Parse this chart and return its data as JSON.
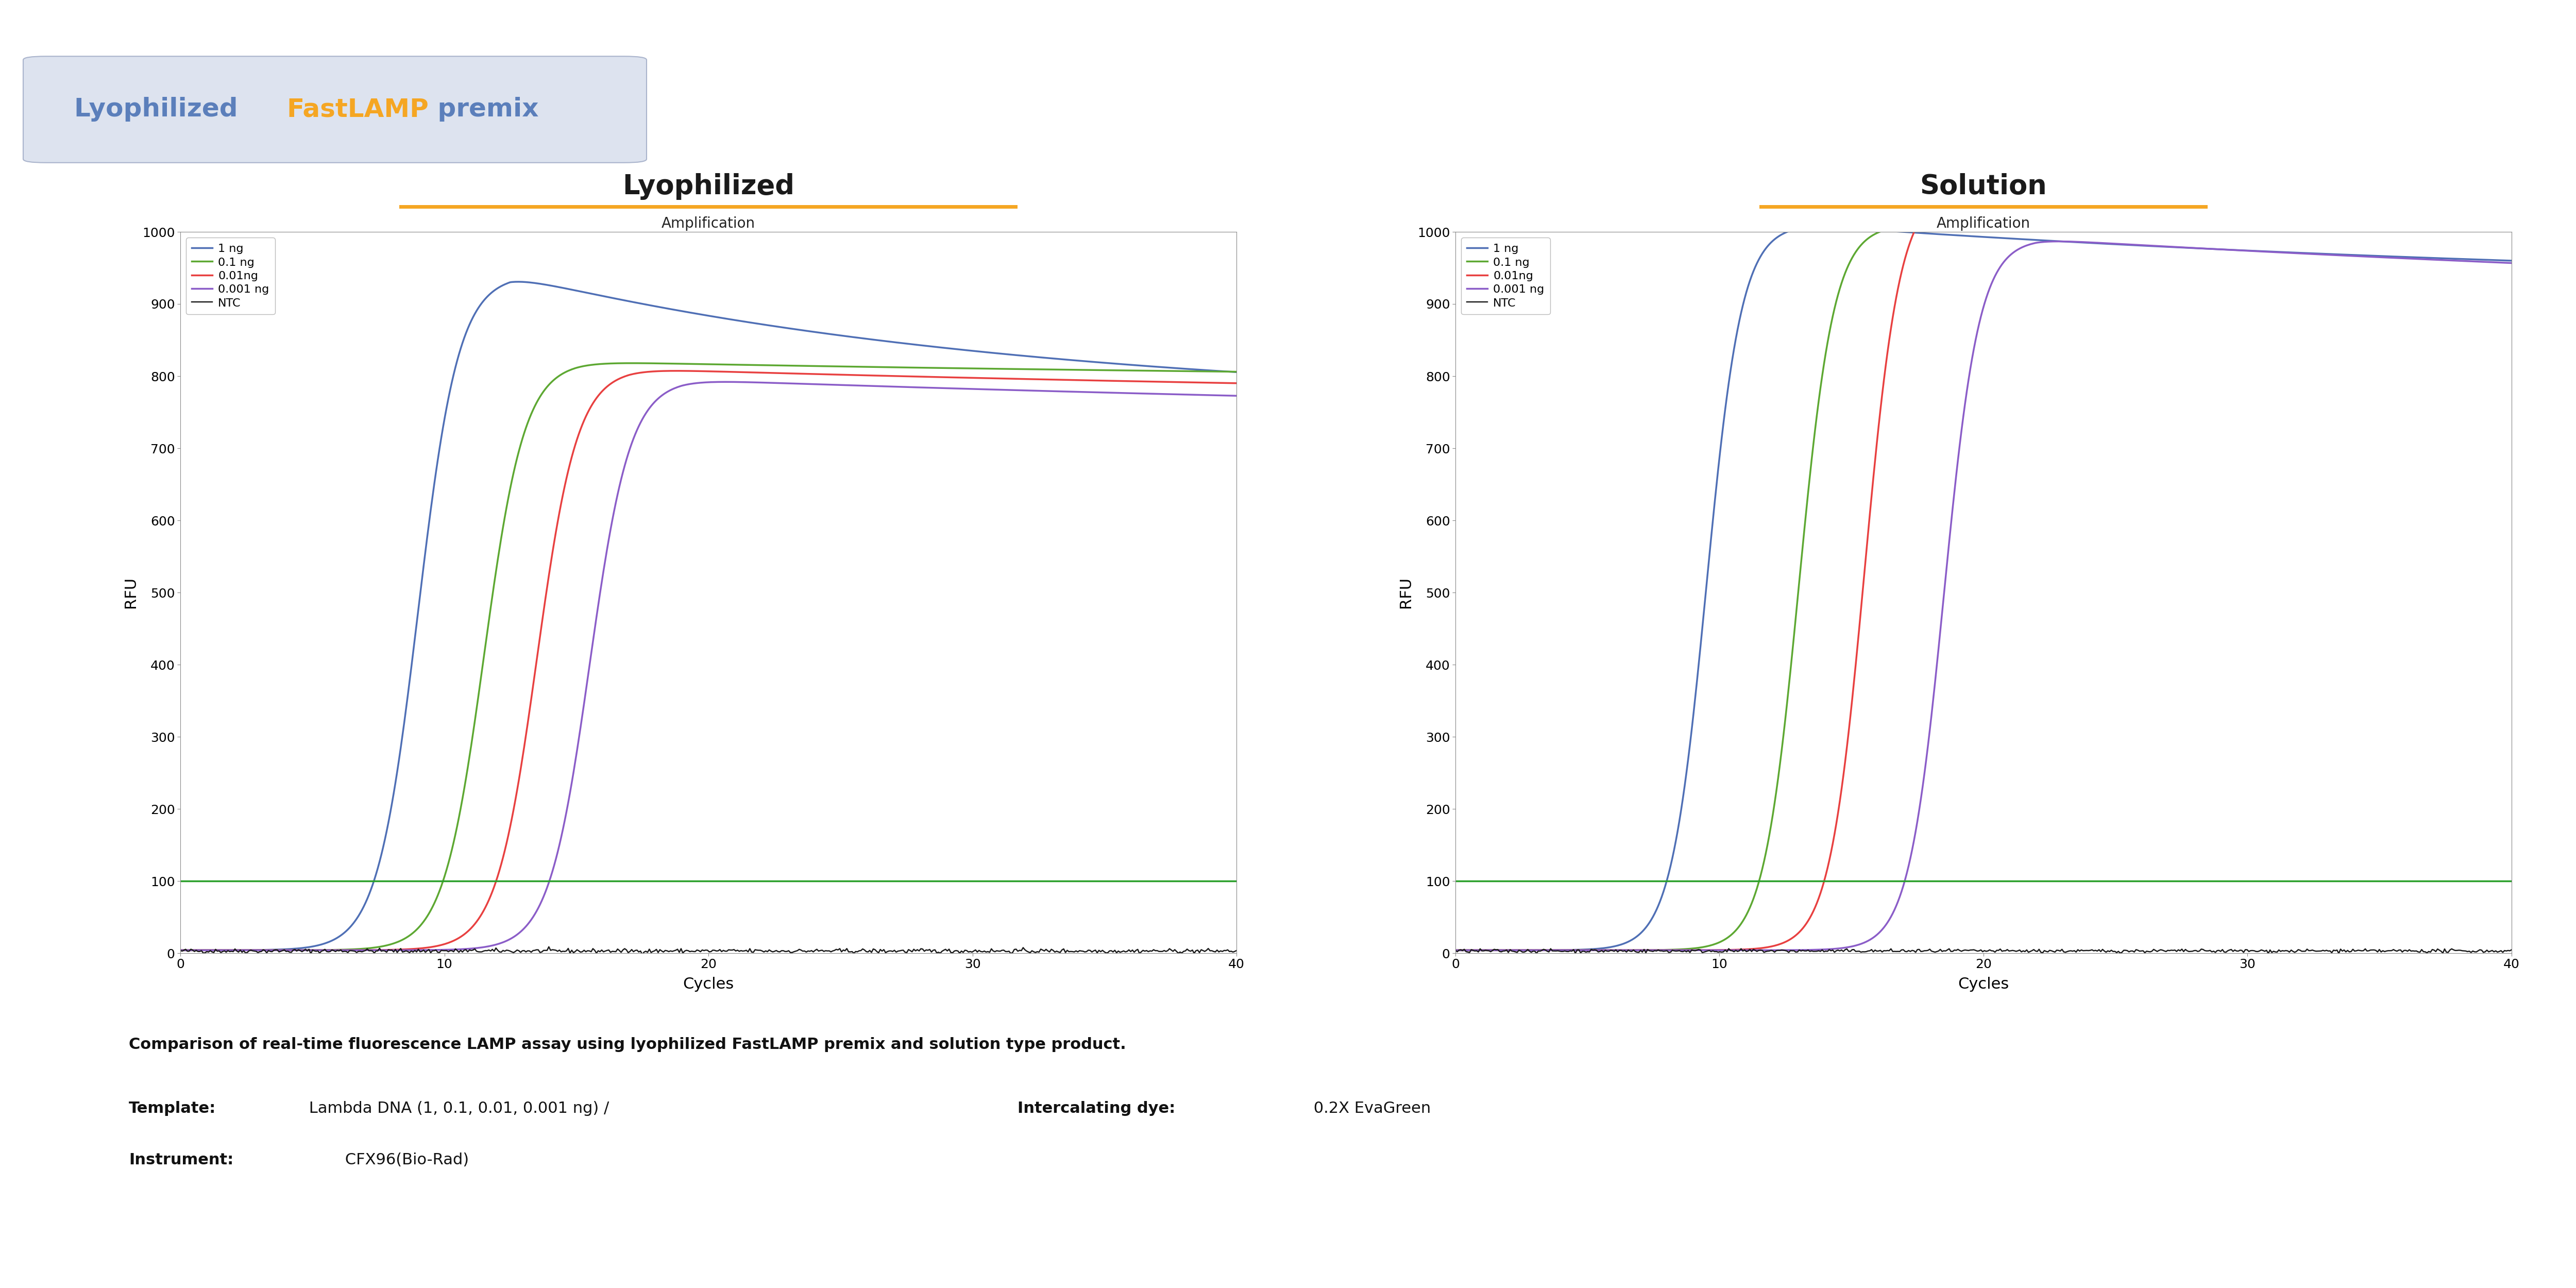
{
  "title_text1": "Lyophilized ",
  "title_text2": "FastLAMP",
  "title_text3": " premix",
  "title_color1": "#5b7fbb",
  "title_color2": "#f5a623",
  "title_bg": "#dde3ef",
  "title_fontsize": 36,
  "subtitle_lyophilized": "Lyophilized",
  "subtitle_solution": "Solution",
  "subtitle_underline_color": "#f5a623",
  "plot_title": "Amplification",
  "xlabel": "Cycles",
  "ylabel": "RFU",
  "xlim": [
    0,
    40
  ],
  "ylim": [
    0,
    1000
  ],
  "xticks": [
    0,
    10,
    20,
    30,
    40
  ],
  "yticks": [
    0,
    100,
    200,
    300,
    400,
    500,
    600,
    700,
    800,
    900,
    1000
  ],
  "legend_labels": [
    "1 ng",
    "0.1 ng",
    "0.01ng",
    "0.001 ng",
    "NTC"
  ],
  "legend_colors": [
    "#4f6fb5",
    "#5da832",
    "#e84040",
    "#8b5dc8",
    "#1a1a1a"
  ],
  "threshold_color": "#2ca02c",
  "threshold_value": 100,
  "caption_fontsize": 22,
  "fig_bg": "#ffffff"
}
